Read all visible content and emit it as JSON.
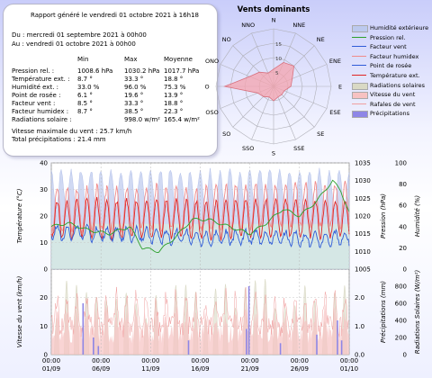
{
  "summary": {
    "title": "Rapport généré le vendredi 01 octobre 2021 à 16h18",
    "from": "Du : mercredi 01 septembre 2021 à 00h00",
    "to": "Au : vendredi 01 octobre 2021 à 00h00",
    "headers": [
      "Min",
      "Max",
      "Moyenne"
    ],
    "rows": [
      {
        "label": "Pression rel. :",
        "min": "1008.6 hPa",
        "max": "1030.2 hPa",
        "avg": "1017.7 hPa"
      },
      {
        "label": "Température ext. :",
        "min": "8.7 °",
        "max": "33.3 °",
        "avg": "18.8 °"
      },
      {
        "label": "Humidité ext. :",
        "min": "33.0 %",
        "max": "96.0 %",
        "avg": "75.3 %"
      },
      {
        "label": "Point de rosée :",
        "min": "6.1 °",
        "max": "19.6 °",
        "avg": "13.9 °"
      },
      {
        "label": "Facteur vent :",
        "min": "8.5 °",
        "max": "33.3 °",
        "avg": "18.8 °"
      },
      {
        "label": "Facteur humidex :",
        "min": "8.7 °",
        "max": "38.5 °",
        "avg": "22.3 °"
      },
      {
        "label": "Radiations solaire :",
        "min": "",
        "max": "998.0 w/m²",
        "avg": "165.4 w/m²"
      }
    ],
    "max_wind": "Vitesse maximale du vent : 25.7 km/h",
    "total_precip": "Total précipitations : 21.4 mm"
  },
  "radar": {
    "title": "Vents dominants",
    "directions": [
      "N",
      "NNE",
      "NE",
      "ENE",
      "E",
      "ESE",
      "SE",
      "SSE",
      "S",
      "SSO",
      "SO",
      "OSO",
      "O",
      "ONO",
      "NO",
      "NNO"
    ],
    "ring_labels": [
      "5",
      "10",
      "15"
    ],
    "ring_max": 20,
    "values": [
      6,
      9,
      10,
      7,
      6,
      4,
      4,
      4,
      5,
      4,
      5,
      6,
      17,
      9,
      7,
      5
    ],
    "fill_color": "#f4a3ad",
    "stroke_color": "#d8707e"
  },
  "legend": [
    {
      "label": "Humidité extérieure",
      "kind": "fill",
      "color": "#bcc9ee"
    },
    {
      "label": "Pression rel.",
      "kind": "line",
      "color": "#2ca02c"
    },
    {
      "label": "Facteur vent",
      "kind": "line",
      "color": "#2e5bd8"
    },
    {
      "label": "Facteur humidex",
      "kind": "line",
      "color": "#f08a8a"
    },
    {
      "label": "Point de rosée",
      "kind": "line",
      "color": "#2e5bd8"
    },
    {
      "label": "Température ext.",
      "kind": "line",
      "color": "#e02424"
    },
    {
      "label": "Radiations solaires",
      "kind": "fill",
      "color": "#d9d9c4"
    },
    {
      "label": "Vitesse du vent",
      "kind": "fill",
      "color": "#f7c2c2"
    },
    {
      "label": "Rafales de vent",
      "kind": "line",
      "color": "#f0a0a0"
    },
    {
      "label": "Précipitations",
      "kind": "fill",
      "color": "#8e86e6"
    }
  ],
  "chart_data": [
    {
      "type": "line",
      "xlabels": [
        "01/09",
        "06/09",
        "11/09",
        "16/09",
        "21/09",
        "26/09",
        "01/10"
      ],
      "ylabel_left": "Température (°C)",
      "ylabel_right1": "Pression (hPa)",
      "ylabel_right2": "Humidité (%)",
      "ylim_left": [
        0,
        40
      ],
      "ylim_right1": [
        1005,
        1035
      ],
      "ylim_right2": [
        0,
        100
      ],
      "yticks_left": [
        "0",
        "10",
        "20",
        "30",
        "40"
      ],
      "yticks_right1": [
        "1005",
        "1010",
        "1015",
        "1020",
        "1025",
        "1030",
        "1035"
      ],
      "yticks_right2": [
        "0",
        "20",
        "40",
        "60",
        "80",
        "100"
      ],
      "series": [
        {
          "name": "Température ext.",
          "color": "#e02424",
          "mean": 18.8,
          "amp": 7,
          "min": 8.7,
          "max": 33.3
        },
        {
          "name": "Facteur humidex",
          "color": "#f08a8a",
          "mean": 22.3,
          "amp": 8,
          "min": 8.7,
          "max": 38.5
        },
        {
          "name": "Point de rosée",
          "color": "#2e5bd8",
          "mean": 13.9,
          "amp": 2.5,
          "min": 6.1,
          "max": 19.6
        },
        {
          "name": "Pression rel.",
          "color": "#2ca02c",
          "mean": 1017.7,
          "amp": 0,
          "min": 1008.6,
          "max": 1030.2
        },
        {
          "name": "Humidité extérieure",
          "color": "#bcc9ee",
          "mean": 75.3,
          "amp": 18,
          "min": 33.0,
          "max": 96.0
        }
      ]
    },
    {
      "type": "area",
      "xlabels": [
        "01/09",
        "06/09",
        "11/09",
        "16/09",
        "21/09",
        "26/09",
        "01/10"
      ],
      "ylabel_left": "Vitesse du vent (km/h)",
      "ylabel_right1": "Précipitations (mm)",
      "ylabel_right2": "Radiations Solaires (W/m²)",
      "ylim_left": [
        0,
        30
      ],
      "ylim_right1": [
        0,
        3
      ],
      "ylim_right2": [
        0,
        1000
      ],
      "yticks_left": [
        "0",
        "10",
        "20",
        "30"
      ],
      "yticks_right1": [
        "0.0",
        "1.0",
        "2.0",
        "3.0"
      ],
      "yticks_right2": [
        "0",
        "200",
        "400",
        "600",
        "800",
        "1000"
      ],
      "series": [
        {
          "name": "Vitesse du vent",
          "color": "#f7c2c2",
          "max": 25.7
        },
        {
          "name": "Rafales de vent",
          "color": "#f0a0a0",
          "max": 25.7
        },
        {
          "name": "Radiations solaires",
          "color": "#d9d9c4",
          "max": 998.0
        },
        {
          "name": "Précipitations",
          "color": "#8e86e6",
          "total": 21.4
        }
      ]
    }
  ]
}
